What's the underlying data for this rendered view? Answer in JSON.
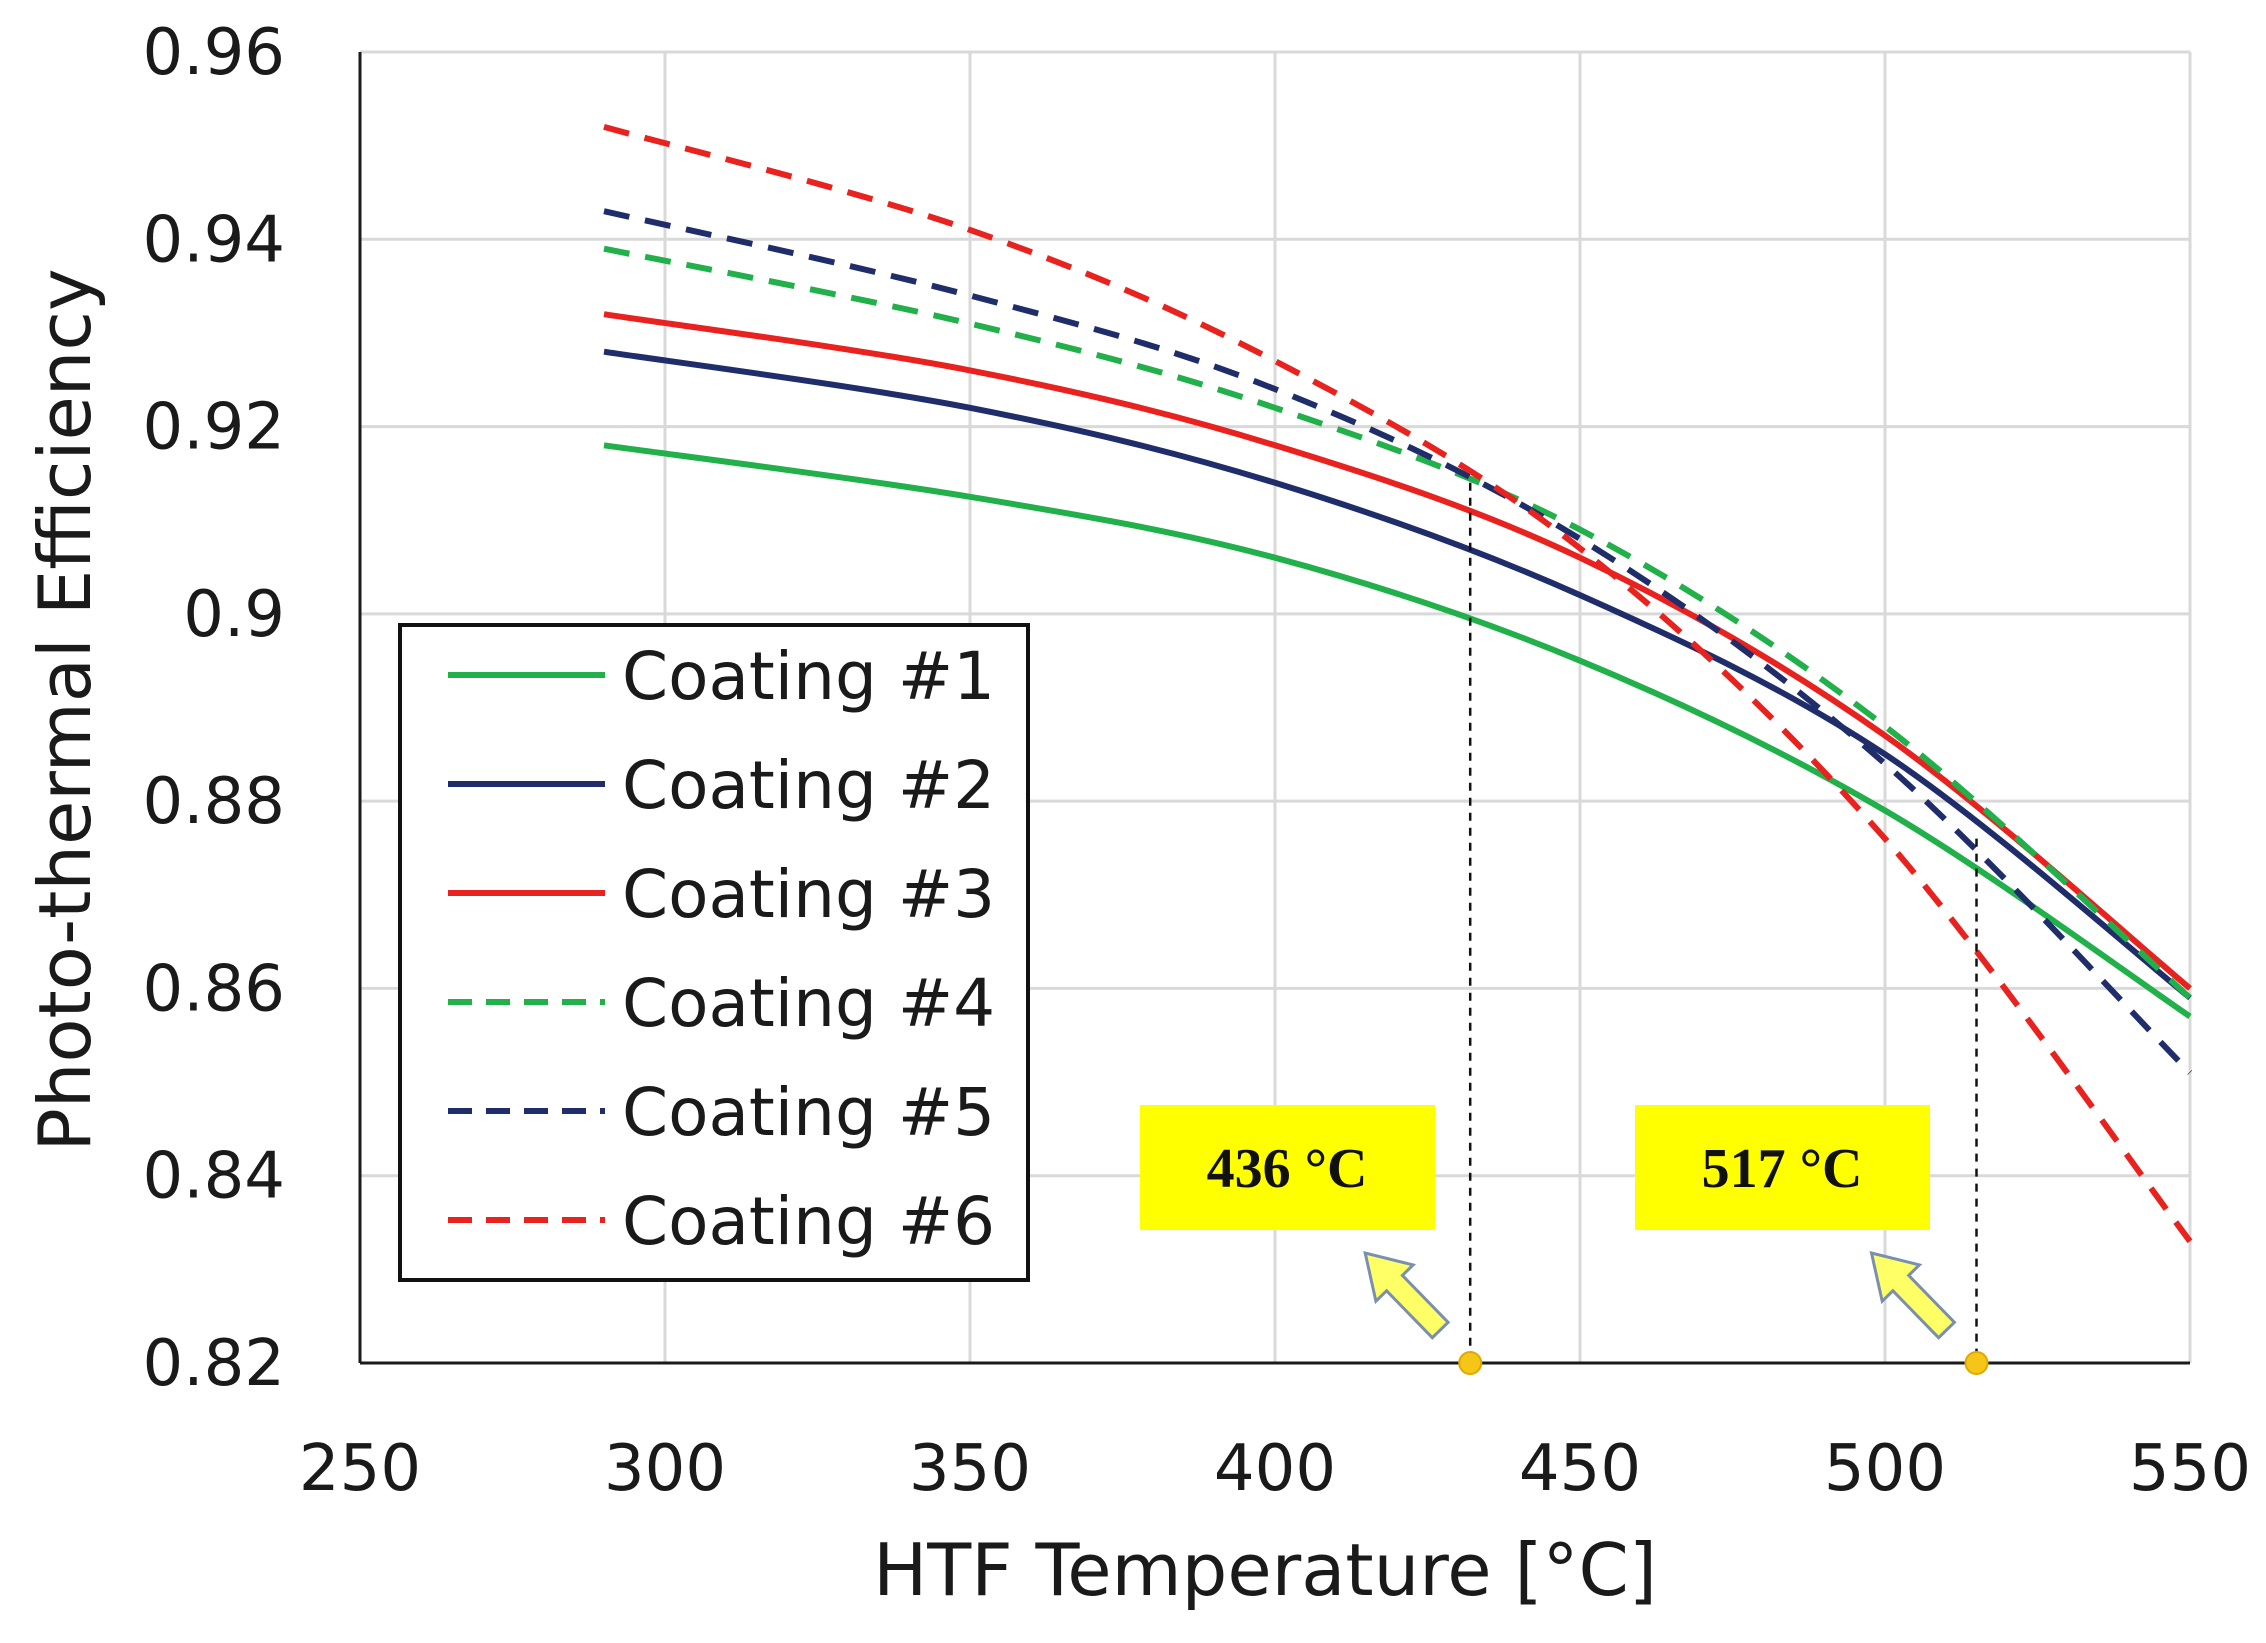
{
  "chart_data": {
    "type": "line",
    "title": "",
    "xlabel": "HTF Temperature [°C]",
    "ylabel": "Photo-thermal Efficiency",
    "xlim": [
      250,
      550
    ],
    "ylim": [
      0.82,
      0.96
    ],
    "xticks": [
      250,
      300,
      350,
      400,
      450,
      500,
      550
    ],
    "yticks": [
      0.82,
      0.84,
      0.86,
      0.88,
      0.9,
      0.92,
      0.94,
      0.96
    ],
    "xtick_labels": [
      "250",
      "300",
      "350",
      "400",
      "450",
      "500",
      "550"
    ],
    "ytick_labels": [
      "0.82",
      "0.84",
      "0.86",
      "0.88",
      "0.9",
      "0.92",
      "0.94",
      "0.96"
    ],
    "grid": true,
    "legend_position": "left",
    "series": [
      {
        "name": "Coating #1",
        "color": "#22b04b",
        "dash": "solid",
        "points": [
          [
            290,
            0.918
          ],
          [
            350,
            0.9125
          ],
          [
            400,
            0.906
          ],
          [
            450,
            0.895
          ],
          [
            500,
            0.879
          ],
          [
            550,
            0.857
          ]
        ]
      },
      {
        "name": "Coating #2",
        "color": "#1f2d6b",
        "dash": "solid",
        "points": [
          [
            290,
            0.928
          ],
          [
            350,
            0.922
          ],
          [
            400,
            0.914
          ],
          [
            450,
            0.902
          ],
          [
            500,
            0.885
          ],
          [
            550,
            0.859
          ]
        ]
      },
      {
        "name": "Coating #3",
        "color": "#e8231f",
        "dash": "solid",
        "points": [
          [
            290,
            0.932
          ],
          [
            350,
            0.926
          ],
          [
            400,
            0.918
          ],
          [
            450,
            0.906
          ],
          [
            500,
            0.887
          ],
          [
            550,
            0.86
          ]
        ]
      },
      {
        "name": "Coating #4",
        "color": "#22b04b",
        "dash": "dashed",
        "points": [
          [
            290,
            0.939
          ],
          [
            350,
            0.931
          ],
          [
            400,
            0.922
          ],
          [
            450,
            0.909
          ],
          [
            500,
            0.888
          ],
          [
            550,
            0.859
          ]
        ]
      },
      {
        "name": "Coating #5",
        "color": "#1f2d6b",
        "dash": "dashed",
        "points": [
          [
            290,
            0.943
          ],
          [
            350,
            0.934
          ],
          [
            400,
            0.924
          ],
          [
            450,
            0.908
          ],
          [
            500,
            0.884
          ],
          [
            550,
            0.851
          ]
        ]
      },
      {
        "name": "Coating #6",
        "color": "#e8231f",
        "dash": "dashed",
        "points": [
          [
            290,
            0.952
          ],
          [
            350,
            0.941
          ],
          [
            400,
            0.927
          ],
          [
            450,
            0.907
          ],
          [
            500,
            0.876
          ],
          [
            550,
            0.833
          ]
        ]
      }
    ],
    "annotations": [
      {
        "label": "436 °C",
        "x": 432,
        "y_top": 0.914
      },
      {
        "label": "517 °C",
        "x": 515,
        "y_top": 0.876
      }
    ],
    "colors": {
      "callout_fill": "#ffff00",
      "arrow_fill": "#ffff66",
      "arrow_stroke": "#7a8fb0",
      "marker": "#f5c518",
      "grid": "#d9d9d9"
    }
  }
}
